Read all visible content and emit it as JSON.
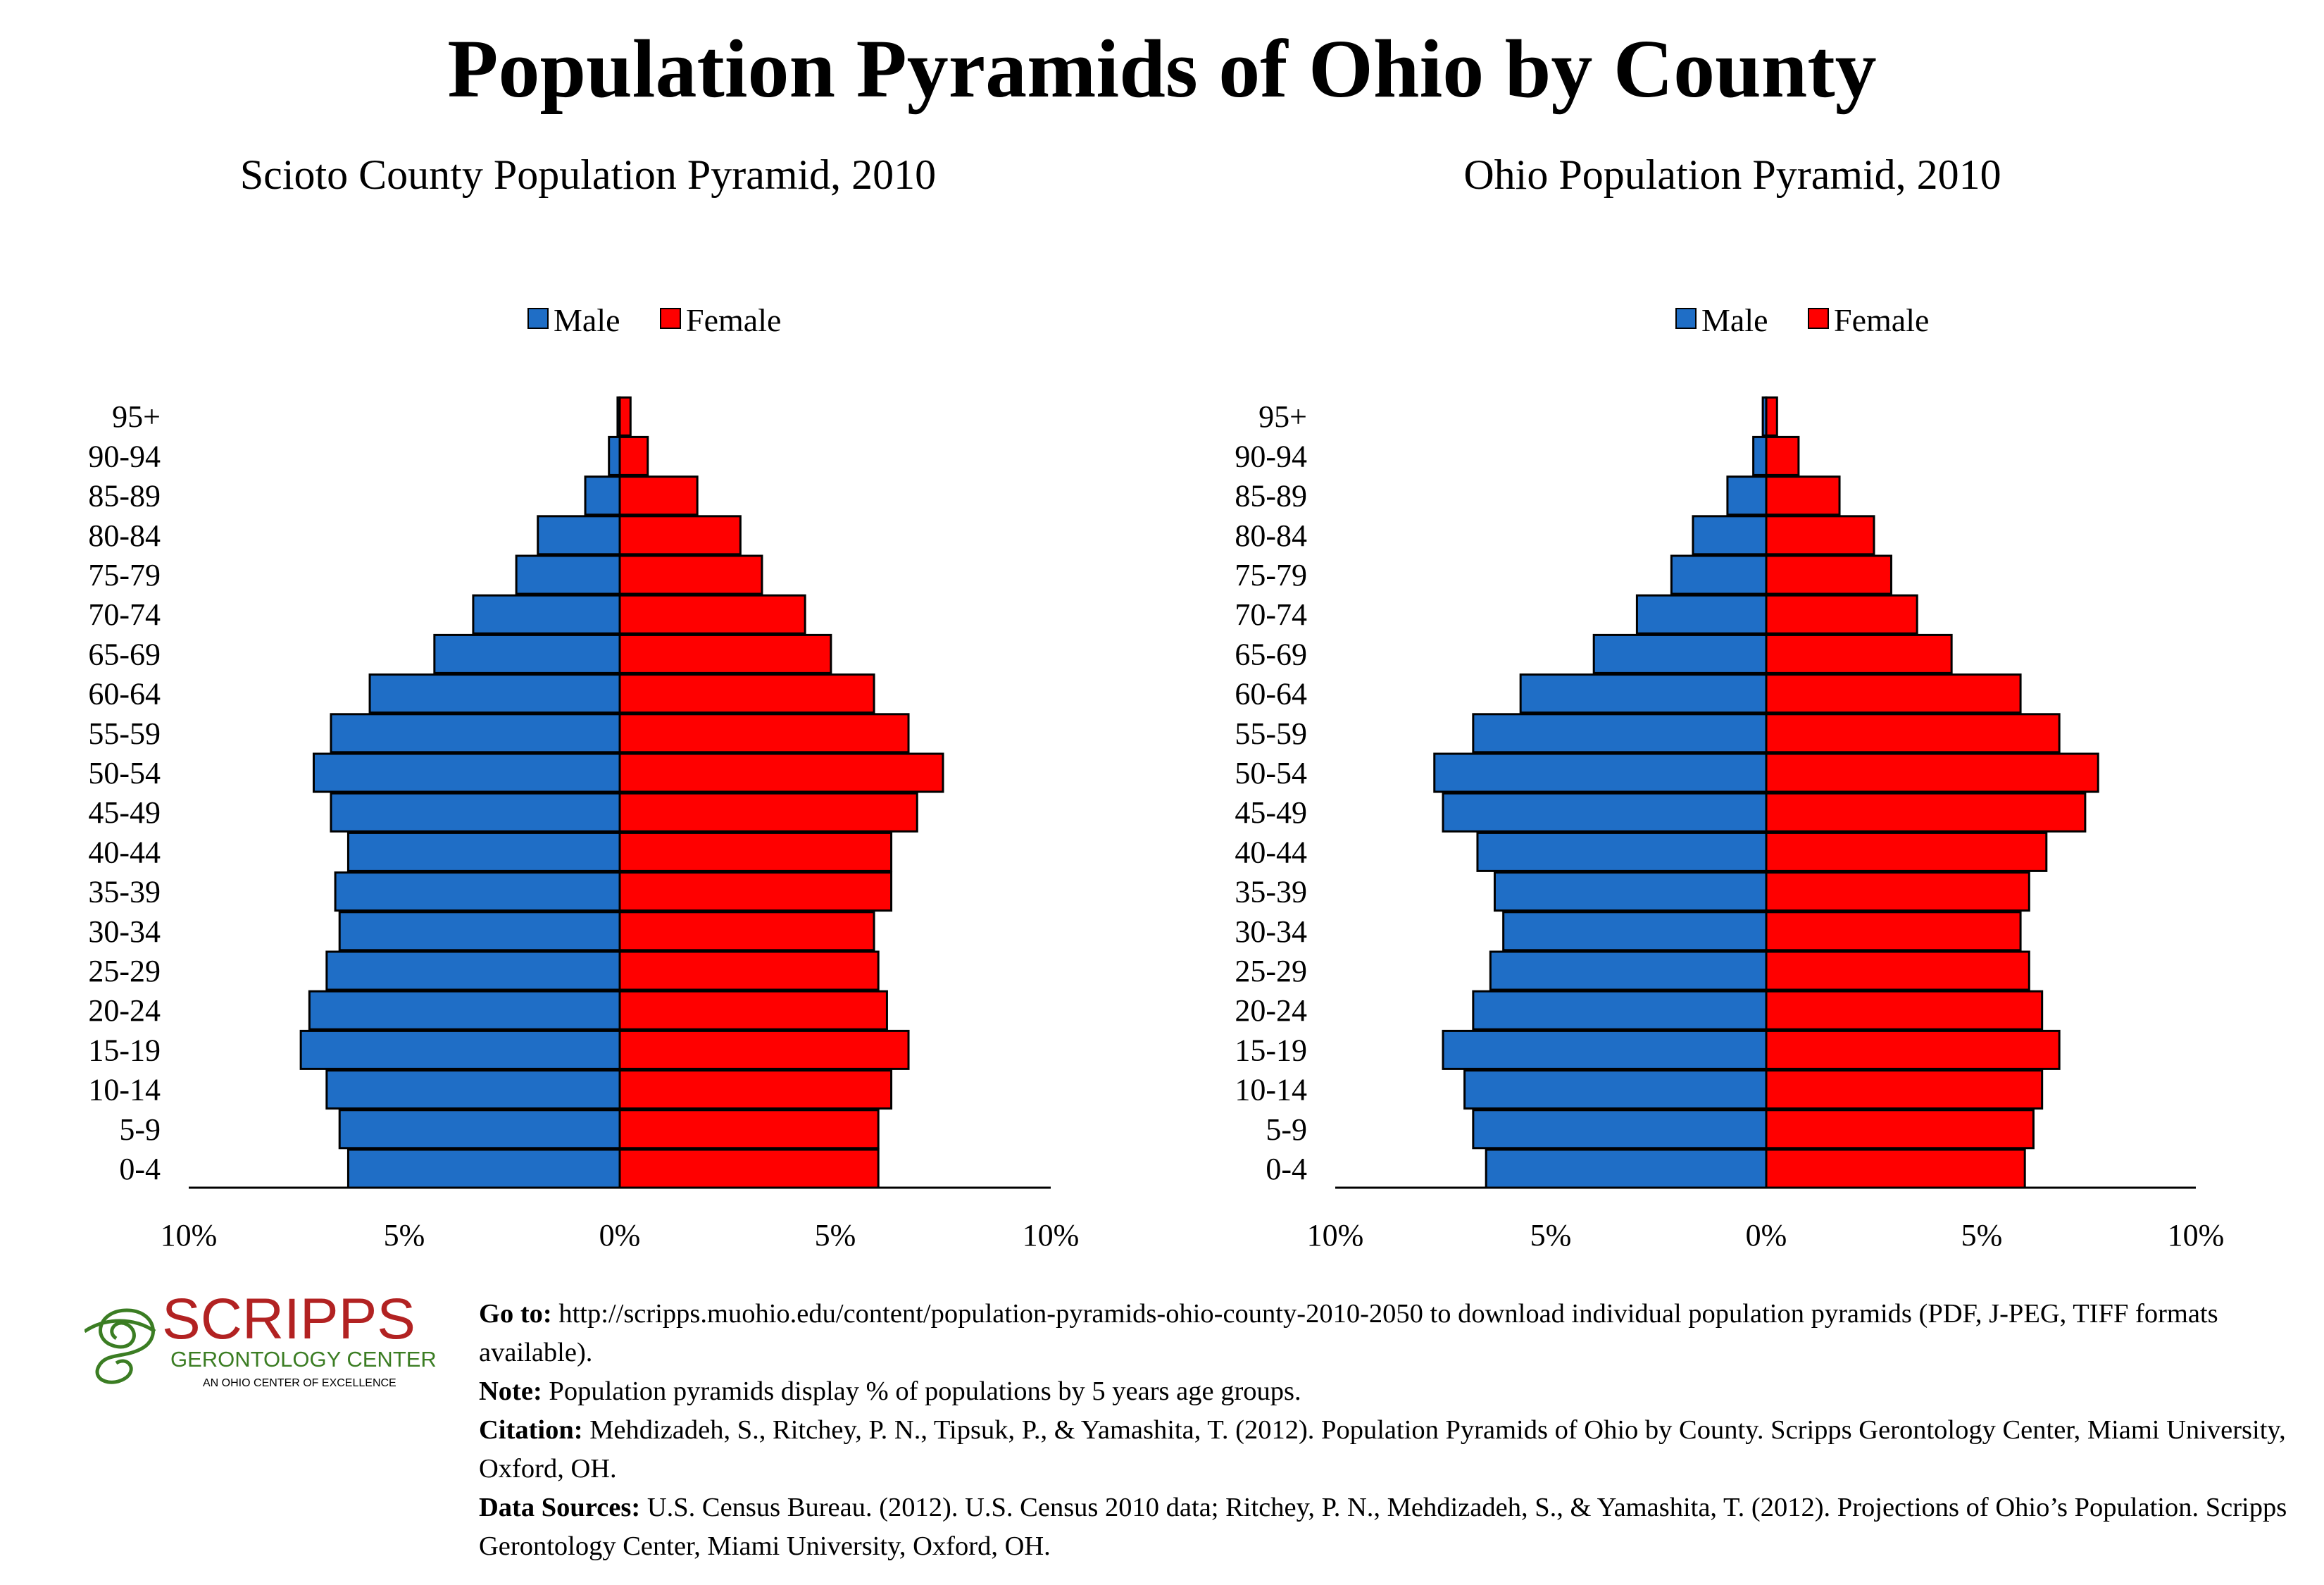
{
  "title": "Population Pyramids of Ohio by County",
  "legend": {
    "male": "Male",
    "female": "Female"
  },
  "colors": {
    "male": "#1F6EC6",
    "female": "#FF0000"
  },
  "chart_data": [
    {
      "type": "bar",
      "orientation": "horizontal-pyramid",
      "title": "Scioto County Population Pyramid, 2010",
      "categories": [
        "0-4",
        "5-9",
        "10-14",
        "15-19",
        "20-24",
        "25-29",
        "30-34",
        "35-39",
        "40-44",
        "45-49",
        "50-54",
        "55-59",
        "60-64",
        "65-69",
        "70-74",
        "75-79",
        "80-84",
        "85-89",
        "90-94",
        "95+"
      ],
      "series": [
        {
          "name": "Male",
          "values": [
            6.3,
            6.5,
            6.8,
            7.4,
            7.2,
            6.8,
            6.5,
            6.6,
            6.3,
            6.7,
            7.1,
            6.7,
            5.8,
            4.3,
            3.4,
            2.4,
            1.9,
            0.8,
            0.25,
            0.05
          ]
        },
        {
          "name": "Female",
          "values": [
            6.0,
            6.0,
            6.3,
            6.7,
            6.2,
            6.0,
            5.9,
            6.3,
            6.3,
            6.9,
            7.5,
            6.7,
            5.9,
            4.9,
            4.3,
            3.3,
            2.8,
            1.8,
            0.65,
            0.25
          ]
        }
      ],
      "x_ticks": [
        "10%",
        "5%",
        "0%",
        "5%",
        "10%"
      ],
      "xlim": [
        -10,
        10
      ],
      "legend_position": "top"
    },
    {
      "type": "bar",
      "orientation": "horizontal-pyramid",
      "title": "Ohio Population Pyramid, 2010",
      "categories": [
        "0-4",
        "5-9",
        "10-14",
        "15-19",
        "20-24",
        "25-29",
        "30-34",
        "35-39",
        "40-44",
        "45-49",
        "50-54",
        "55-59",
        "60-64",
        "65-69",
        "70-74",
        "75-79",
        "80-84",
        "85-89",
        "90-94",
        "95+"
      ],
      "series": [
        {
          "name": "Male",
          "values": [
            6.5,
            6.8,
            7.0,
            7.5,
            6.8,
            6.4,
            6.1,
            6.3,
            6.7,
            7.5,
            7.7,
            6.8,
            5.7,
            4.0,
            3.0,
            2.2,
            1.7,
            0.9,
            0.3,
            0.08
          ]
        },
        {
          "name": "Female",
          "values": [
            6.0,
            6.2,
            6.4,
            6.8,
            6.4,
            6.1,
            5.9,
            6.1,
            6.5,
            7.4,
            7.7,
            6.8,
            5.9,
            4.3,
            3.5,
            2.9,
            2.5,
            1.7,
            0.75,
            0.25
          ]
        }
      ],
      "x_ticks": [
        "10%",
        "5%",
        "0%",
        "5%",
        "10%"
      ],
      "xlim": [
        -10,
        10
      ],
      "legend_position": "top"
    }
  ],
  "logo": {
    "name": "SCRIPPS",
    "subtitle": "GERONTOLOGY CENTER",
    "tagline": "AN OHIO CENTER OF EXCELLENCE",
    "red": "#B22222",
    "green": "#3B7D23"
  },
  "footer": {
    "goto_label": "Go to:",
    "goto_text": " http://scripps.muohio.edu/content/population-pyramids-ohio-county-2010-2050 to download individual population pyramids (PDF, J-PEG, TIFF formats available).",
    "note_label": "Note:",
    "note_text": " Population pyramids display % of populations by 5 years age groups.",
    "citation_label": "Citation:",
    "citation_text": " Mehdizadeh, S., Ritchey, P. N., Tipsuk, P., & Yamashita, T. (2012). Population Pyramids of Ohio by County. Scripps Gerontology Center, Miami University, Oxford, OH.",
    "sources_label": "Data Sources:",
    "sources_text": " U.S. Census Bureau. (2012). U.S. Census 2010 data; Ritchey, P. N., Mehdizadeh, S., & Yamashita, T. (2012). Projections of Ohio’s Population. Scripps Gerontology Center, Miami University, Oxford, OH."
  }
}
